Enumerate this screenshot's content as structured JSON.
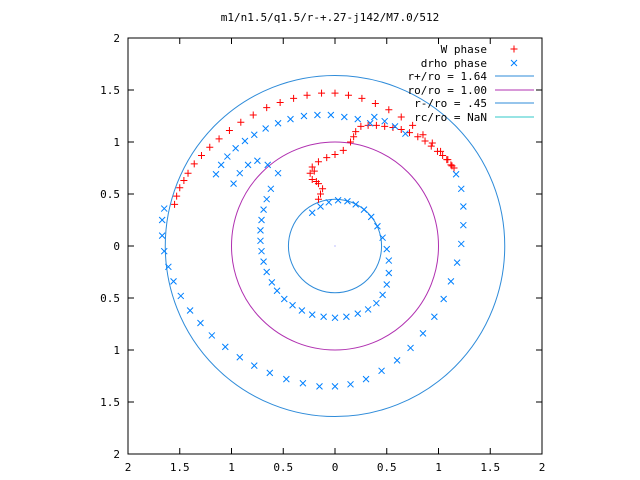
{
  "chart_data": {
    "type": "scatter",
    "title": "m1/n1.5/q1.5/r-+.27-j142/M7.0/512",
    "xlim": [
      -2,
      2
    ],
    "ylim": [
      -2,
      2
    ],
    "x_tick_values": [
      -2,
      -1.5,
      -1,
      -0.5,
      0,
      0.5,
      1,
      1.5,
      2
    ],
    "x_tick_labels": [
      "2",
      "1.5",
      "1",
      "0.5",
      "0",
      "0.5",
      "1",
      "1.5",
      "2"
    ],
    "y_tick_values": [
      2,
      1.5,
      1,
      0.5,
      0,
      -0.5,
      -1,
      -1.5,
      -2
    ],
    "y_tick_labels": [
      "2",
      "1.5",
      "1",
      "0.5",
      "0",
      "0.5",
      "1",
      "1.5",
      "2"
    ],
    "grid": false,
    "legend_position": "top-right",
    "series": [
      {
        "name": "W phase",
        "marker": "plus",
        "color": "#ff0000",
        "points": [
          [
            -1.55,
            0.4
          ],
          [
            -1.53,
            0.48
          ],
          [
            -1.5,
            0.56
          ],
          [
            -1.46,
            0.63
          ],
          [
            -1.42,
            0.7
          ],
          [
            -1.36,
            0.79
          ],
          [
            -1.29,
            0.87
          ],
          [
            -1.21,
            0.95
          ],
          [
            -1.12,
            1.03
          ],
          [
            -1.02,
            1.11
          ],
          [
            -0.91,
            1.19
          ],
          [
            -0.79,
            1.26
          ],
          [
            -0.66,
            1.33
          ],
          [
            -0.53,
            1.38
          ],
          [
            -0.4,
            1.42
          ],
          [
            -0.27,
            1.45
          ],
          [
            -0.13,
            1.47
          ],
          [
            0.0,
            1.47
          ],
          [
            0.13,
            1.45
          ],
          [
            0.26,
            1.42
          ],
          [
            0.39,
            1.37
          ],
          [
            0.52,
            1.31
          ],
          [
            0.64,
            1.24
          ],
          [
            0.75,
            1.16
          ],
          [
            0.85,
            1.07
          ],
          [
            0.94,
            0.99
          ],
          [
            1.02,
            0.91
          ],
          [
            1.09,
            0.83
          ],
          [
            1.13,
            0.77
          ],
          [
            1.15,
            0.75
          ],
          [
            0.25,
            1.15
          ],
          [
            0.32,
            1.16
          ],
          [
            0.4,
            1.16
          ],
          [
            0.48,
            1.15
          ],
          [
            0.56,
            1.14
          ],
          [
            0.64,
            1.12
          ],
          [
            0.72,
            1.09
          ],
          [
            0.8,
            1.05
          ],
          [
            0.87,
            1.01
          ],
          [
            0.93,
            0.96
          ],
          [
            0.99,
            0.91
          ],
          [
            1.04,
            0.87
          ],
          [
            1.08,
            0.83
          ],
          [
            1.12,
            0.78
          ],
          [
            0.15,
            1.0
          ],
          [
            0.08,
            0.92
          ],
          [
            0.0,
            0.88
          ],
          [
            -0.08,
            0.85
          ],
          [
            -0.16,
            0.81
          ],
          [
            -0.22,
            0.76
          ],
          [
            -0.24,
            0.7
          ],
          [
            -0.22,
            0.64
          ],
          [
            -0.16,
            0.6
          ],
          [
            -0.12,
            0.55
          ],
          [
            -0.14,
            0.5
          ],
          [
            -0.16,
            0.45
          ],
          [
            0.2,
            1.1
          ],
          [
            0.18,
            1.05
          ],
          [
            -0.2,
            0.72
          ],
          [
            -0.18,
            0.62
          ]
        ]
      },
      {
        "name": "drho phase",
        "marker": "cross",
        "color": "#0080ff",
        "points": [
          [
            -1.15,
            0.69
          ],
          [
            -1.1,
            0.78
          ],
          [
            -1.04,
            0.86
          ],
          [
            -0.96,
            0.94
          ],
          [
            -0.87,
            1.01
          ],
          [
            -0.78,
            1.07
          ],
          [
            -0.67,
            1.13
          ],
          [
            -0.55,
            1.18
          ],
          [
            -0.43,
            1.22
          ],
          [
            -0.3,
            1.25
          ],
          [
            -0.17,
            1.26
          ],
          [
            -0.04,
            1.26
          ],
          [
            0.09,
            1.24
          ],
          [
            0.22,
            1.22
          ],
          [
            0.34,
            1.18
          ],
          [
            -0.98,
            0.6
          ],
          [
            -0.92,
            0.7
          ],
          [
            -0.84,
            0.78
          ],
          [
            -0.75,
            0.82
          ],
          [
            -0.65,
            0.78
          ],
          [
            -0.55,
            0.7
          ],
          [
            -0.62,
            0.55
          ],
          [
            -0.66,
            0.45
          ],
          [
            -0.69,
            0.35
          ],
          [
            -0.71,
            0.25
          ],
          [
            -0.72,
            0.15
          ],
          [
            -0.72,
            0.05
          ],
          [
            -0.71,
            -0.05
          ],
          [
            -0.69,
            -0.15
          ],
          [
            -0.66,
            -0.25
          ],
          [
            -0.61,
            -0.35
          ],
          [
            -0.56,
            -0.43
          ],
          [
            -0.49,
            -0.51
          ],
          [
            -0.41,
            -0.57
          ],
          [
            -0.32,
            -0.62
          ],
          [
            -0.22,
            -0.66
          ],
          [
            -0.11,
            -0.68
          ],
          [
            0.0,
            -0.69
          ],
          [
            0.11,
            -0.68
          ],
          [
            0.22,
            -0.65
          ],
          [
            0.32,
            -0.61
          ],
          [
            0.4,
            -0.55
          ],
          [
            0.46,
            -0.47
          ],
          [
            0.5,
            -0.37
          ],
          [
            0.52,
            -0.26
          ],
          [
            0.52,
            -0.14
          ],
          [
            0.5,
            -0.03
          ],
          [
            0.46,
            0.08
          ],
          [
            0.41,
            0.19
          ],
          [
            0.35,
            0.28
          ],
          [
            0.28,
            0.35
          ],
          [
            0.2,
            0.4
          ],
          [
            0.12,
            0.43
          ],
          [
            0.03,
            0.44
          ],
          [
            -0.06,
            0.42
          ],
          [
            -0.14,
            0.38
          ],
          [
            -0.22,
            0.32
          ],
          [
            -1.65,
            0.36
          ],
          [
            -1.67,
            0.25
          ],
          [
            -1.67,
            0.1
          ],
          [
            -1.65,
            -0.05
          ],
          [
            -1.61,
            -0.2
          ],
          [
            -1.56,
            -0.34
          ],
          [
            -1.49,
            -0.48
          ],
          [
            -1.4,
            -0.62
          ],
          [
            -1.3,
            -0.74
          ],
          [
            -1.19,
            -0.86
          ],
          [
            -1.06,
            -0.97
          ],
          [
            -0.92,
            -1.07
          ],
          [
            -0.78,
            -1.15
          ],
          [
            -0.63,
            -1.22
          ],
          [
            -0.47,
            -1.28
          ],
          [
            -0.31,
            -1.32
          ],
          [
            -0.15,
            -1.35
          ],
          [
            0.0,
            -1.35
          ],
          [
            0.15,
            -1.33
          ],
          [
            0.3,
            -1.28
          ],
          [
            0.45,
            -1.2
          ],
          [
            0.6,
            -1.1
          ],
          [
            0.73,
            -0.98
          ],
          [
            0.85,
            -0.84
          ],
          [
            0.96,
            -0.68
          ],
          [
            1.05,
            -0.51
          ],
          [
            1.12,
            -0.34
          ],
          [
            1.18,
            -0.16
          ],
          [
            1.22,
            0.02
          ],
          [
            1.24,
            0.2
          ],
          [
            1.24,
            0.38
          ],
          [
            1.22,
            0.55
          ],
          [
            1.17,
            0.69
          ],
          [
            0.38,
            1.24
          ],
          [
            0.48,
            1.2
          ],
          [
            0.58,
            1.15
          ],
          [
            0.68,
            1.08
          ]
        ]
      }
    ],
    "circles": [
      {
        "name": "r+/ro = 1.64",
        "radius": 1.64,
        "color": "#2e8bd9"
      },
      {
        "name": "ro/ro = 1.00",
        "radius": 1.0,
        "color": "#b030b0"
      },
      {
        "name": "r-/ro = .45",
        "radius": 0.45,
        "color": "#2e8bd9"
      },
      {
        "name": "rc/ro = NaN",
        "radius": null,
        "color": "#30c8c8"
      }
    ]
  }
}
